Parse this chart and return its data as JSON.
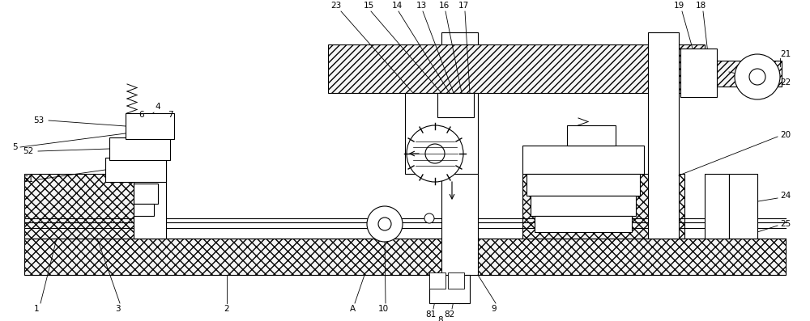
{
  "bg": "#ffffff",
  "lc": "#000000",
  "fig_w": 10.0,
  "fig_h": 3.97,
  "dpi": 100
}
